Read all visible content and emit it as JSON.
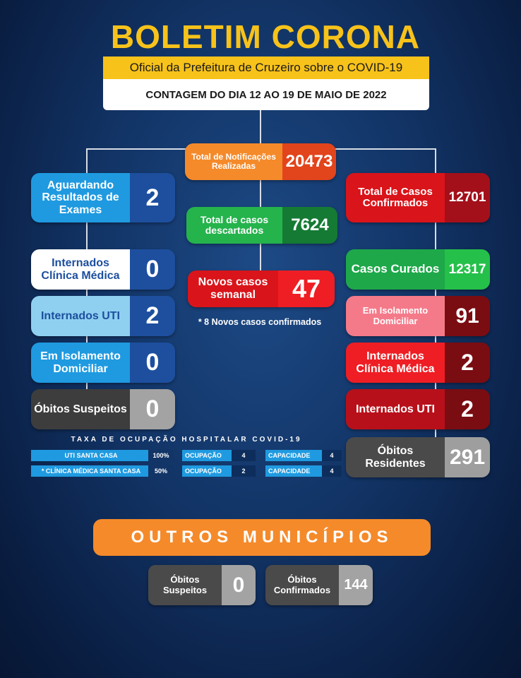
{
  "header": {
    "title": "BOLETIM CORONA",
    "subtitle": "Oficial da Prefeitura de Cruzeiro sobre o COVID-19",
    "date": "CONTAGEM DO DIA 12 AO 19 DE MAIO DE 2022"
  },
  "center": {
    "total_notificacoes": {
      "label": "Total de Notificações Realizadas",
      "value": "20473"
    },
    "descartados": {
      "label": "Total de casos descartados",
      "value": "7624"
    },
    "novos_semanal": {
      "label": "Novos casos semanal",
      "value": "47"
    },
    "note": "* 8 Novos casos confirmados"
  },
  "left": {
    "aguardando": {
      "label": "Aguardando Resultados de Exames",
      "value": "2"
    },
    "internados_clinica": {
      "label": "Internados Clínica Médica",
      "value": "0"
    },
    "internados_uti": {
      "label": "Internados UTI",
      "value": "2"
    },
    "isolamento": {
      "label": "Em Isolamento Domiciliar",
      "value": "0"
    },
    "obitos_suspeitos": {
      "label": "Óbitos Suspeitos",
      "value": "0"
    }
  },
  "right": {
    "confirmados": {
      "label": "Total de Casos Confirmados",
      "value": "12701"
    },
    "curados": {
      "label": "Casos Curados",
      "value": "12317"
    },
    "isolamento": {
      "label": "Em Isolamento Domiciliar",
      "value": "91"
    },
    "internados_clinica": {
      "label": "Internados Clínica Médica",
      "value": "2"
    },
    "internados_uti": {
      "label": "Internados UTI",
      "value": "2"
    },
    "obitos_residentes": {
      "label": "Óbitos Residentes",
      "value": "291"
    }
  },
  "taxa": {
    "title": "TAXA DE OCUPAÇÃO HOSPITALAR COVID-19",
    "rows": [
      {
        "name": "UTI SANTA CASA",
        "pct": "100%",
        "ocup_label": "OCUPAÇÃO",
        "ocup": "4",
        "cap_label": "CAPACIDADE",
        "cap": "4"
      },
      {
        "name": "* CLÍNICA MÉDICA SANTA CASA",
        "pct": "50%",
        "ocup_label": "OCUPAÇÃO",
        "ocup": "2",
        "cap_label": "CAPACIDADE",
        "cap": "4"
      }
    ]
  },
  "outros": {
    "title": "OUTROS MUNICÍPIOS",
    "obitos_suspeitos": {
      "label": "Óbitos Suspeitos",
      "value": "0"
    },
    "obitos_confirmados": {
      "label": "Óbitos Confirmados",
      "value": "144"
    }
  },
  "colors": {
    "yellow": "#f7c21a",
    "orange": "#f58a2a",
    "blue": "#1f9ae0",
    "navy": "#1d4f9e",
    "green": "#1ea84a",
    "red": "#d9141a",
    "darkred": "#a8101a",
    "gray": "#4a4a4a"
  }
}
